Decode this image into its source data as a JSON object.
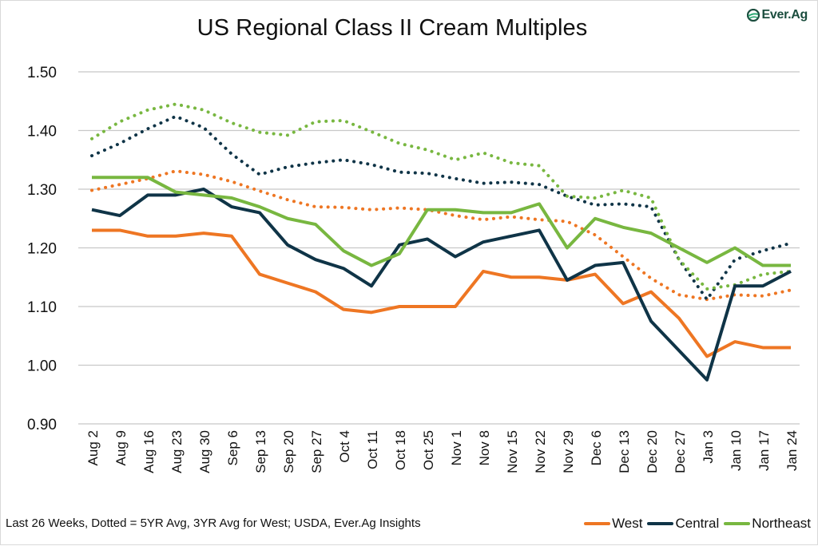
{
  "chart_data": {
    "type": "line",
    "title": "US Regional Class II Cream Multiples",
    "xlabel": "",
    "ylabel": "",
    "ylim": [
      0.9,
      1.5
    ],
    "yticks": [
      0.9,
      1.0,
      1.1,
      1.2,
      1.3,
      1.4,
      1.5
    ],
    "ytick_labels": [
      "0.90",
      "1.00",
      "1.10",
      "1.20",
      "1.30",
      "1.40",
      "1.50"
    ],
    "grid": "horizontal",
    "legend_position": "bottom-right",
    "categories": [
      "Aug 2",
      "Aug 9",
      "Aug 16",
      "Aug 23",
      "Aug 30",
      "Sep 6",
      "Sep 13",
      "Sep 20",
      "Sep 27",
      "Oct 4",
      "Oct 11",
      "Oct 18",
      "Oct 25",
      "Nov 1",
      "Nov 8",
      "Nov 15",
      "Nov 22",
      "Nov 29",
      "Dec 6",
      "Dec 13",
      "Dec 20",
      "Dec 27",
      "Jan 3",
      "Jan 10",
      "Jan 17",
      "Jan 24"
    ],
    "series": [
      {
        "name": "West",
        "style": "solid",
        "color": "#ee7623",
        "values": [
          1.23,
          1.23,
          1.22,
          1.22,
          1.225,
          1.22,
          1.155,
          1.14,
          1.125,
          1.095,
          1.09,
          1.1,
          1.1,
          1.1,
          1.16,
          1.15,
          1.15,
          1.145,
          1.155,
          1.105,
          1.125,
          1.08,
          1.015,
          1.04,
          1.03,
          1.03
        ]
      },
      {
        "name": "Central",
        "style": "solid",
        "color": "#0f3447",
        "values": [
          1.265,
          1.255,
          1.29,
          1.29,
          1.3,
          1.27,
          1.26,
          1.205,
          1.18,
          1.165,
          1.135,
          1.205,
          1.215,
          1.185,
          1.21,
          1.22,
          1.23,
          1.145,
          1.17,
          1.175,
          1.075,
          1.025,
          0.975,
          1.135,
          1.135,
          1.16
        ]
      },
      {
        "name": "Northeast",
        "style": "solid",
        "color": "#78b740",
        "values": [
          1.32,
          1.32,
          1.32,
          1.295,
          1.29,
          1.285,
          1.27,
          1.25,
          1.24,
          1.195,
          1.17,
          1.19,
          1.265,
          1.265,
          1.26,
          1.26,
          1.275,
          1.2,
          1.25,
          1.235,
          1.225,
          1.2,
          1.175,
          1.2,
          1.17,
          1.17
        ]
      },
      {
        "name": "West 3YR Avg",
        "style": "dotted",
        "color": "#ee7623",
        "values": [
          1.298,
          1.308,
          1.318,
          1.331,
          1.325,
          1.313,
          1.297,
          1.282,
          1.27,
          1.269,
          1.265,
          1.268,
          1.265,
          1.255,
          1.248,
          1.253,
          1.248,
          1.245,
          1.222,
          1.185,
          1.148,
          1.12,
          1.112,
          1.12,
          1.118,
          1.128
        ]
      },
      {
        "name": "Central 5YR Avg",
        "style": "dotted",
        "color": "#0f3447",
        "values": [
          1.357,
          1.378,
          1.403,
          1.424,
          1.405,
          1.36,
          1.325,
          1.338,
          1.345,
          1.35,
          1.342,
          1.329,
          1.327,
          1.318,
          1.31,
          1.312,
          1.308,
          1.288,
          1.273,
          1.275,
          1.27,
          1.18,
          1.112,
          1.18,
          1.195,
          1.208
        ]
      },
      {
        "name": "Northeast 5YR Avg",
        "style": "dotted",
        "color": "#78b740",
        "values": [
          1.386,
          1.415,
          1.435,
          1.445,
          1.435,
          1.413,
          1.397,
          1.392,
          1.415,
          1.417,
          1.398,
          1.378,
          1.367,
          1.35,
          1.362,
          1.345,
          1.34,
          1.288,
          1.285,
          1.298,
          1.285,
          1.18,
          1.13,
          1.137,
          1.155,
          1.16
        ]
      }
    ],
    "legend": [
      {
        "label": "West",
        "color": "#ee7623"
      },
      {
        "label": "Central",
        "color": "#0f3447"
      },
      {
        "label": "Northeast",
        "color": "#78b740"
      }
    ],
    "footnote": "Last 26 Weeks, Dotted = 5YR Avg, 3YR Avg for West; USDA, Ever.Ag Insights"
  },
  "branding": {
    "logo_text": "Ever.Ag",
    "logo_icon": "ever-ag-leaf-icon",
    "logo_color": "#1b4d3e",
    "logo_accent": "#2aa872"
  },
  "colors": {
    "gridline": "#c8c8c8",
    "text": "#111111"
  }
}
